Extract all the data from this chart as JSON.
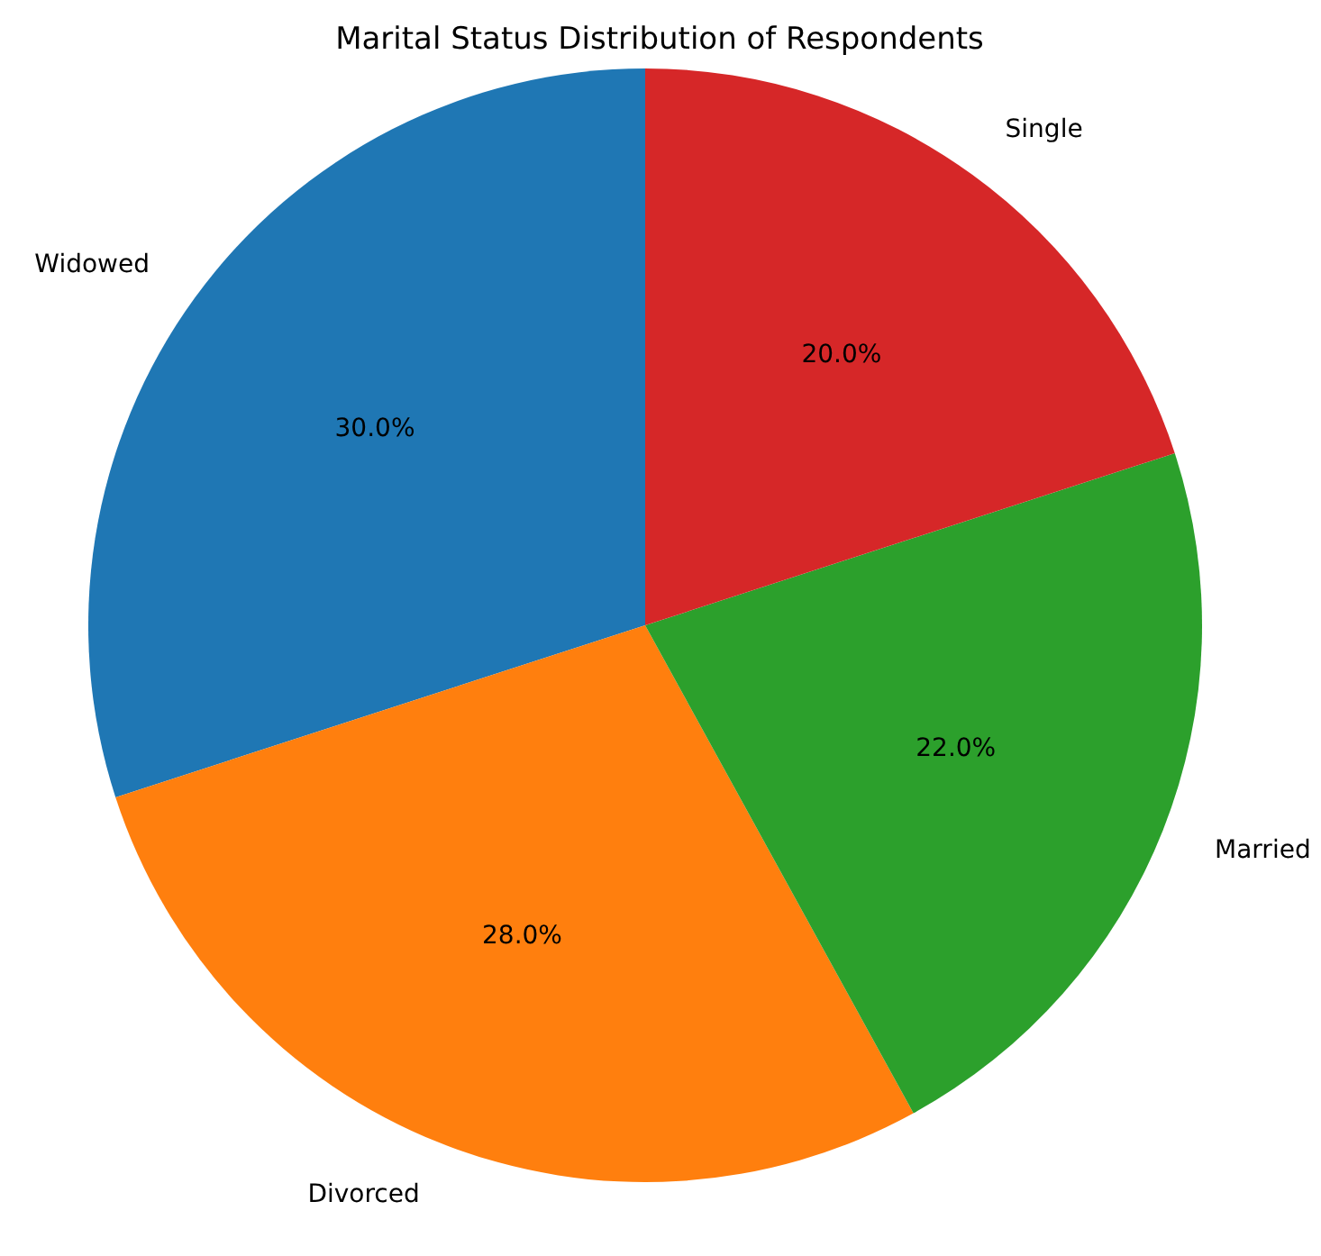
{
  "chart_data": {
    "type": "pie",
    "title": "Marital Status Distribution of Respondents",
    "categories": [
      "Widowed",
      "Divorced",
      "Married",
      "Single"
    ],
    "values": [
      30,
      28,
      22,
      20
    ],
    "colors": [
      "#1f77b4",
      "#ff7f0e",
      "#2ca02c",
      "#d62728"
    ],
    "value_labels": [
      "30.0%",
      "28.0%",
      "22.0%",
      "20.0%"
    ],
    "legend": false
  }
}
